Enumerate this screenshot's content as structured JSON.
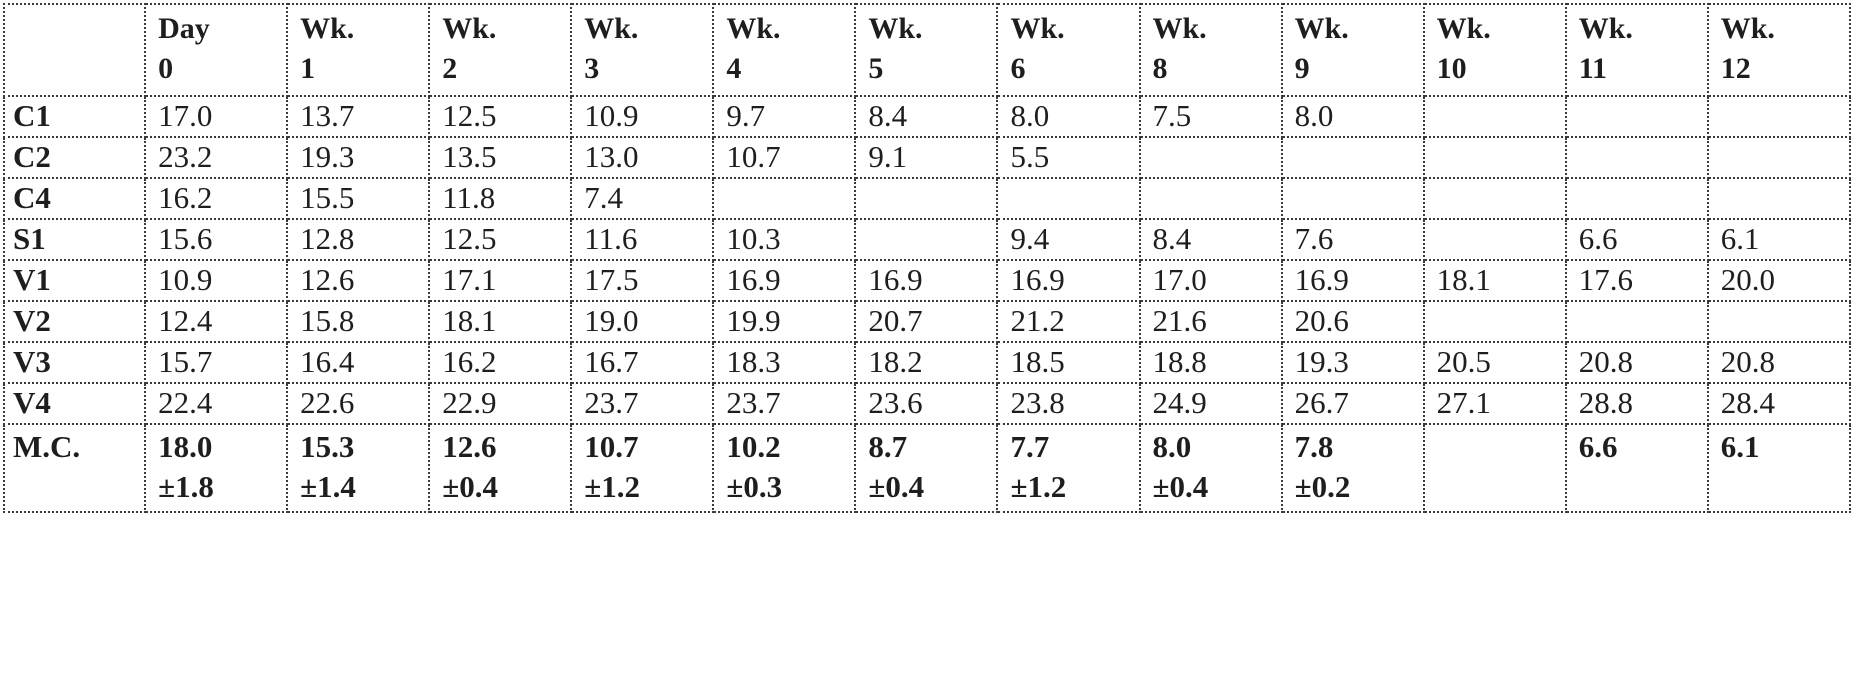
{
  "table": {
    "headers": [
      {
        "line1": "",
        "line2": ""
      },
      {
        "line1": "Day",
        "line2": "0"
      },
      {
        "line1": "Wk.",
        "line2": "1"
      },
      {
        "line1": "Wk.",
        "line2": "2"
      },
      {
        "line1": "Wk.",
        "line2": "3"
      },
      {
        "line1": "Wk.",
        "line2": "4"
      },
      {
        "line1": "Wk.",
        "line2": "5"
      },
      {
        "line1": "Wk.",
        "line2": "6"
      },
      {
        "line1": "Wk.",
        "line2": "8"
      },
      {
        "line1": "Wk.",
        "line2": "9"
      },
      {
        "line1": "Wk.",
        "line2": "10"
      },
      {
        "line1": "Wk.",
        "line2": "11"
      },
      {
        "line1": "Wk.",
        "line2": "12"
      }
    ],
    "rows": [
      {
        "label": "C1",
        "values": [
          "17.0",
          "13.7",
          "12.5",
          "10.9",
          "9.7",
          "8.4",
          "8.0",
          "7.5",
          "8.0",
          "",
          "",
          ""
        ]
      },
      {
        "label": "C2",
        "values": [
          "23.2",
          "19.3",
          "13.5",
          "13.0",
          "10.7",
          "9.1",
          "5.5",
          "",
          "",
          "",
          "",
          ""
        ]
      },
      {
        "label": "C4",
        "values": [
          "16.2",
          "15.5",
          "11.8",
          "7.4",
          "",
          "",
          "",
          "",
          "",
          "",
          "",
          ""
        ]
      },
      {
        "label": "S1",
        "values": [
          "15.6",
          "12.8",
          "12.5",
          "11.6",
          "10.3",
          "",
          "9.4",
          "8.4",
          "7.6",
          "",
          "6.6",
          "6.1"
        ]
      },
      {
        "label": "V1",
        "values": [
          "10.9",
          "12.6",
          "17.1",
          "17.5",
          "16.9",
          "16.9",
          "16.9",
          "17.0",
          "16.9",
          "18.1",
          "17.6",
          "20.0"
        ]
      },
      {
        "label": "V2",
        "values": [
          "12.4",
          "15.8",
          "18.1",
          "19.0",
          "19.9",
          "20.7",
          "21.2",
          "21.6",
          "20.6",
          "",
          "",
          ""
        ]
      },
      {
        "label": "V3",
        "values": [
          "15.7",
          "16.4",
          "16.2",
          "16.7",
          "18.3",
          "18.2",
          "18.5",
          "18.8",
          "19.3",
          "20.5",
          "20.8",
          "20.8"
        ]
      },
      {
        "label": "V4",
        "values": [
          "22.4",
          "22.6",
          "22.9",
          "23.7",
          "23.7",
          "23.6",
          "23.8",
          "24.9",
          "26.7",
          "27.1",
          "28.8",
          "28.4"
        ]
      }
    ],
    "mean_row": {
      "label": "M.C.",
      "values": [
        {
          "mean": "18.0",
          "sd": "±1.8"
        },
        {
          "mean": "15.3",
          "sd": "±1.4"
        },
        {
          "mean": "12.6",
          "sd": "±0.4"
        },
        {
          "mean": "10.7",
          "sd": "±1.2"
        },
        {
          "mean": "10.2",
          "sd": "±0.3"
        },
        {
          "mean": "8.7",
          "sd": "±0.4"
        },
        {
          "mean": "7.7",
          "sd": "±1.2"
        },
        {
          "mean": "8.0",
          "sd": "±0.4"
        },
        {
          "mean": "7.8",
          "sd": "±0.2"
        },
        {
          "mean": "",
          "sd": ""
        },
        {
          "mean": "6.6",
          "sd": ""
        },
        {
          "mean": "6.1",
          "sd": ""
        }
      ]
    }
  }
}
